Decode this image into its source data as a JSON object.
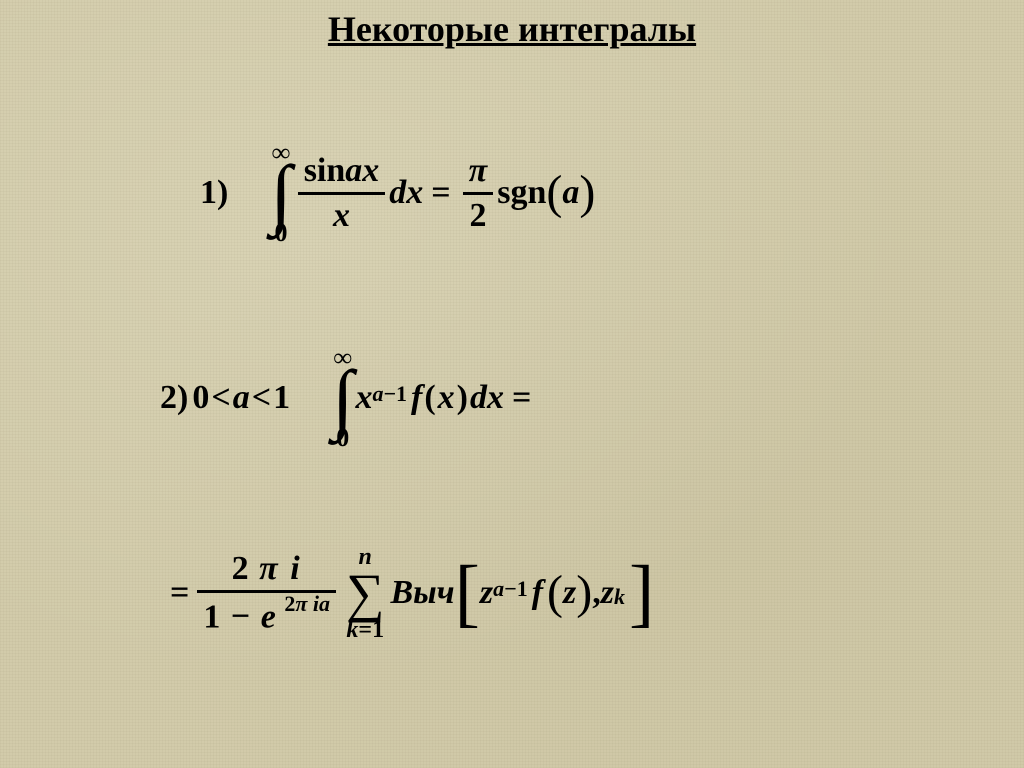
{
  "title": "Некоторые интегралы",
  "background_color": "#d2cbaa",
  "text_color": "#000000",
  "title_fontsize": 36,
  "formula_fontsize": 34,
  "font_family": "Times New Roman",
  "formula1": {
    "label_num": "1",
    "label_paren": ")",
    "int_upper": "∞",
    "int_lower": "0",
    "numerator_sin": "sin",
    "numerator_ax": "ax",
    "denominator": "x",
    "dx_d": "d",
    "dx_x": "x",
    "eq": "=",
    "pi": "π",
    "two": "2",
    "sgn": "sgn",
    "arg": "a"
  },
  "formula2": {
    "label_num": "2",
    "label_paren": ")",
    "cond_zero": "0",
    "cond_lt1": "<",
    "cond_a": "a",
    "cond_lt2": "<",
    "cond_one": "1",
    "int_upper": "∞",
    "int_lower": "0",
    "x": "x",
    "exp_a": "a",
    "exp_minus": "−",
    "exp_one": "1",
    "f": "f",
    "fx_x": "x",
    "dx_d": "d",
    "dx_x": "x",
    "eq": "="
  },
  "formula3": {
    "leading_eq": "=",
    "num_two": "2",
    "num_pi": "π",
    "num_i": "i",
    "den_one": "1",
    "den_minus": "−",
    "den_e": "e",
    "den_exp_two": "2",
    "den_exp_pi": "π",
    "den_exp_i": "i",
    "den_exp_a": "a",
    "sum_upper": "n",
    "sum_lower_k": "k",
    "sum_lower_eq": "=",
    "sum_lower_one": "1",
    "res_word": "Выч",
    "z": "z",
    "exp_a": "a",
    "exp_minus": "−",
    "exp_one": "1",
    "f": "f",
    "fz_z": "z",
    "comma": ",",
    "zk_z": "z",
    "zk_k": "k"
  }
}
